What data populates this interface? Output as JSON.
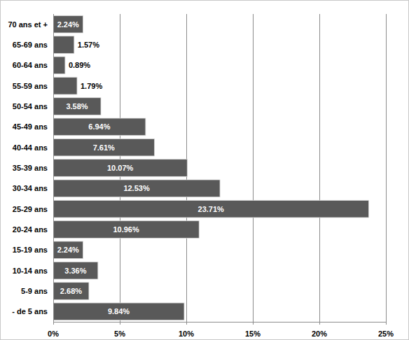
{
  "chart_data": {
    "type": "bar",
    "orientation": "horizontal",
    "categories": [
      "70 ans et +",
      "65-69 ans",
      "60-64 ans",
      "55-59 ans",
      "50-54 ans",
      "45-49 ans",
      "40-44 ans",
      "35-39 ans",
      "30-34 ans",
      "25-29 ans",
      "20-24 ans",
      "15-19 ans",
      "10-14 ans",
      "5-9 ans",
      "- de 5 ans"
    ],
    "values": [
      2.24,
      1.57,
      0.89,
      1.79,
      3.58,
      6.94,
      7.61,
      10.07,
      12.53,
      23.71,
      10.96,
      2.24,
      3.36,
      2.68,
      9.84
    ],
    "value_labels": [
      "2.24%",
      "1.57%",
      "0.89%",
      "1.79%",
      "3.58%",
      "6.94%",
      "7.61%",
      "10.07%",
      "12.53%",
      "23.71%",
      "10.96%",
      "2.24%",
      "3.36%",
      "2.68%",
      "9.84%"
    ],
    "color": "#595959",
    "xlim": [
      0,
      25
    ],
    "xticks": [
      {
        "value": 0,
        "label": "0%"
      },
      {
        "value": 5,
        "label": "5%"
      },
      {
        "value": 10,
        "label": "10%"
      },
      {
        "value": 15,
        "label": "15%"
      },
      {
        "value": 20,
        "label": "20%"
      },
      {
        "value": 25,
        "label": "25%"
      }
    ],
    "grid": true,
    "data_labels": true
  }
}
